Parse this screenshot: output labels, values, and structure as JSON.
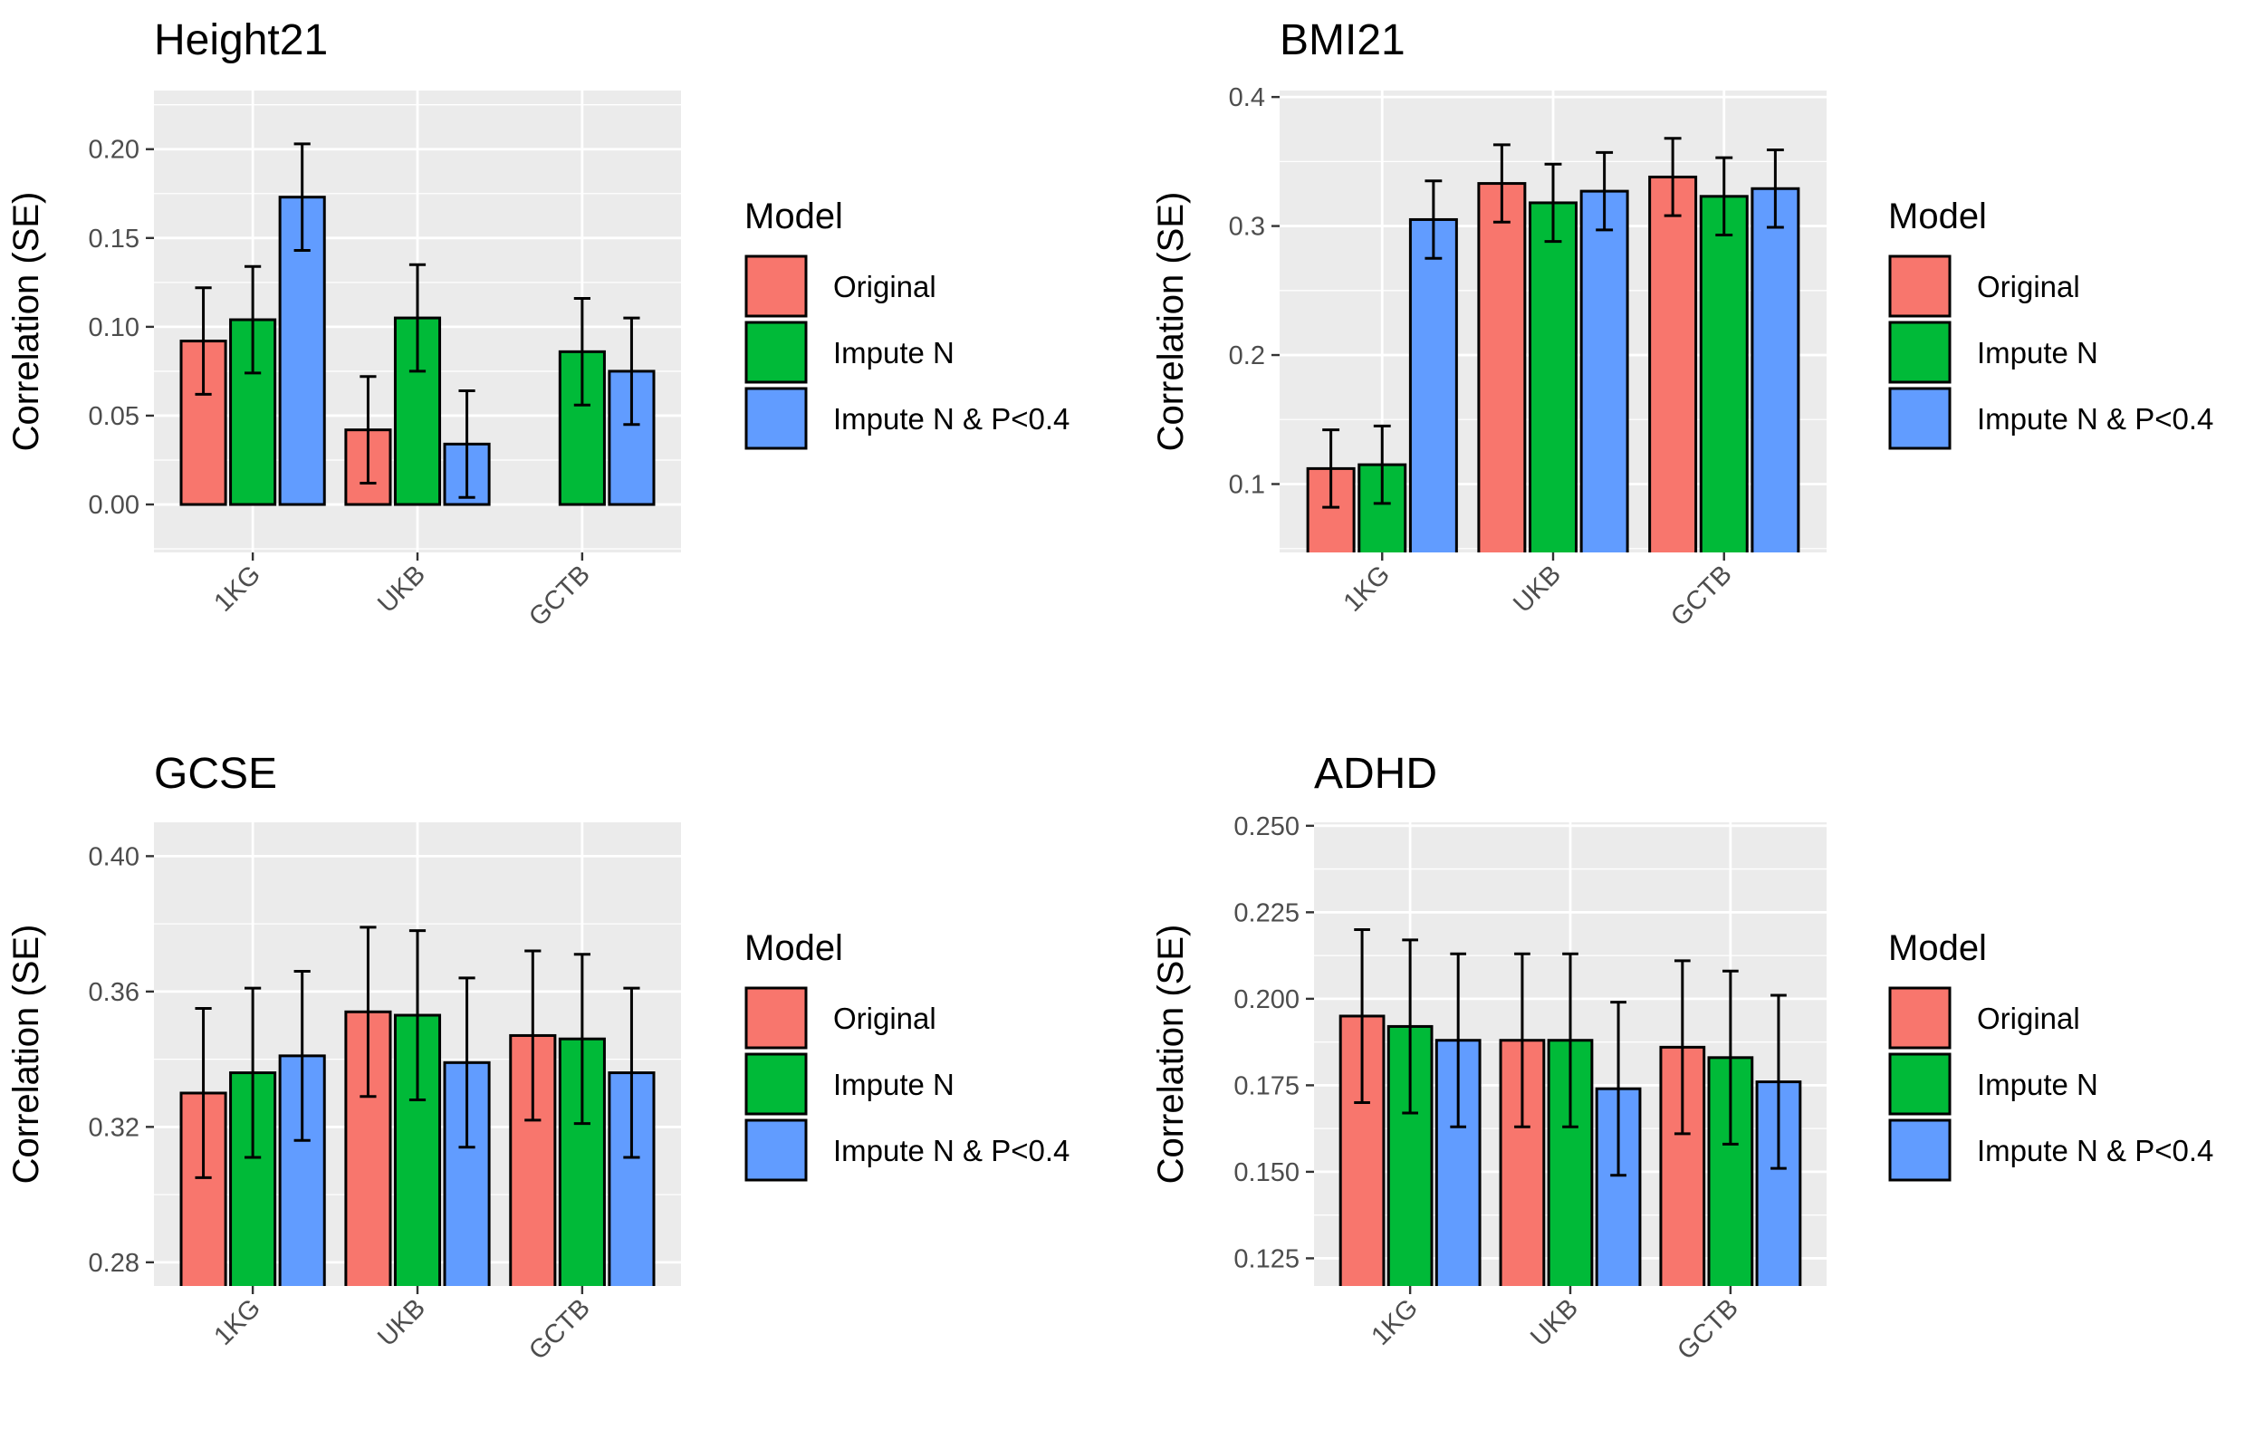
{
  "colors": {
    "Original": "#f8766d",
    "Impute N": "#00ba38",
    "Impute N & P<0.4": "#619cff",
    "panel_background": "#ebebeb",
    "grid": "#ffffff",
    "bar_outline": "#000000",
    "tick_text": "#4d4d4d"
  },
  "legend": {
    "title": "Model",
    "position": "right",
    "entries": [
      "Original",
      "Impute N",
      "Impute N & P<0.4"
    ]
  },
  "chart_data": [
    {
      "type": "bar",
      "title": "Height21",
      "xlabel": "",
      "ylabel": "Correlation (SE)",
      "categories": [
        "1KG",
        "UKB",
        "GCTB"
      ],
      "ylim": [
        -0.027,
        0.233
      ],
      "yticks": [
        0.0,
        0.05,
        0.1,
        0.15,
        0.2
      ],
      "ytick_labels": [
        "0.00",
        "0.05",
        "0.10",
        "0.15",
        "0.20"
      ],
      "grid": true,
      "series": [
        {
          "name": "Original",
          "values": [
            0.092,
            0.042,
            null
          ],
          "se": [
            0.03,
            0.03,
            null
          ]
        },
        {
          "name": "Impute N",
          "values": [
            0.104,
            0.105,
            0.086
          ],
          "se": [
            0.03,
            0.03,
            0.03
          ]
        },
        {
          "name": "Impute N & P<0.4",
          "values": [
            0.173,
            0.034,
            0.075
          ],
          "se": [
            0.03,
            0.03,
            0.03
          ]
        }
      ]
    },
    {
      "type": "bar",
      "title": "BMI21",
      "xlabel": "",
      "ylabel": "Correlation (SE)",
      "categories": [
        "1KG",
        "UKB",
        "GCTB"
      ],
      "ylim": [
        0.047,
        0.405
      ],
      "yticks": [
        0.1,
        0.2,
        0.3,
        0.4
      ],
      "ytick_labels": [
        "0.1",
        "0.2",
        "0.3",
        "0.4"
      ],
      "grid": true,
      "series": [
        {
          "name": "Original",
          "values": [
            0.112,
            0.333,
            0.338
          ],
          "se": [
            0.03,
            0.03,
            0.03
          ]
        },
        {
          "name": "Impute N",
          "values": [
            0.115,
            0.318,
            0.323
          ],
          "se": [
            0.03,
            0.03,
            0.03
          ]
        },
        {
          "name": "Impute N & P<0.4",
          "values": [
            0.305,
            0.327,
            0.329
          ],
          "se": [
            0.03,
            0.03,
            0.03
          ]
        }
      ]
    },
    {
      "type": "bar",
      "title": "GCSE",
      "xlabel": "",
      "ylabel": "Correlation (SE)",
      "categories": [
        "1KG",
        "UKB",
        "GCTB"
      ],
      "ylim": [
        0.273,
        0.41
      ],
      "yticks": [
        0.28,
        0.32,
        0.36,
        0.4
      ],
      "ytick_labels": [
        "0.28",
        "0.32",
        "0.36",
        "0.40"
      ],
      "grid": true,
      "series": [
        {
          "name": "Original",
          "values": [
            0.33,
            0.354,
            0.347
          ],
          "se": [
            0.025,
            0.025,
            0.025
          ]
        },
        {
          "name": "Impute N",
          "values": [
            0.336,
            0.353,
            0.346
          ],
          "se": [
            0.025,
            0.025,
            0.025
          ]
        },
        {
          "name": "Impute N & P<0.4",
          "values": [
            0.341,
            0.339,
            0.336
          ],
          "se": [
            0.025,
            0.025,
            0.025
          ]
        }
      ]
    },
    {
      "type": "bar",
      "title": "ADHD",
      "xlabel": "",
      "ylabel": "Correlation (SE)",
      "categories": [
        "1KG",
        "UKB",
        "GCTB"
      ],
      "ylim": [
        0.117,
        0.251
      ],
      "yticks": [
        0.125,
        0.15,
        0.175,
        0.2,
        0.225,
        0.25
      ],
      "ytick_labels": [
        "0.125",
        "0.150",
        "0.175",
        "0.200",
        "0.225",
        "0.250"
      ],
      "grid": true,
      "series": [
        {
          "name": "Original",
          "values": [
            0.195,
            0.188,
            0.186
          ],
          "se": [
            0.025,
            0.025,
            0.025
          ]
        },
        {
          "name": "Impute N",
          "values": [
            0.192,
            0.188,
            0.183
          ],
          "se": [
            0.025,
            0.025,
            0.025
          ]
        },
        {
          "name": "Impute N & P<0.4",
          "values": [
            0.188,
            0.174,
            0.176
          ],
          "se": [
            0.025,
            0.025,
            0.025
          ]
        }
      ]
    }
  ]
}
